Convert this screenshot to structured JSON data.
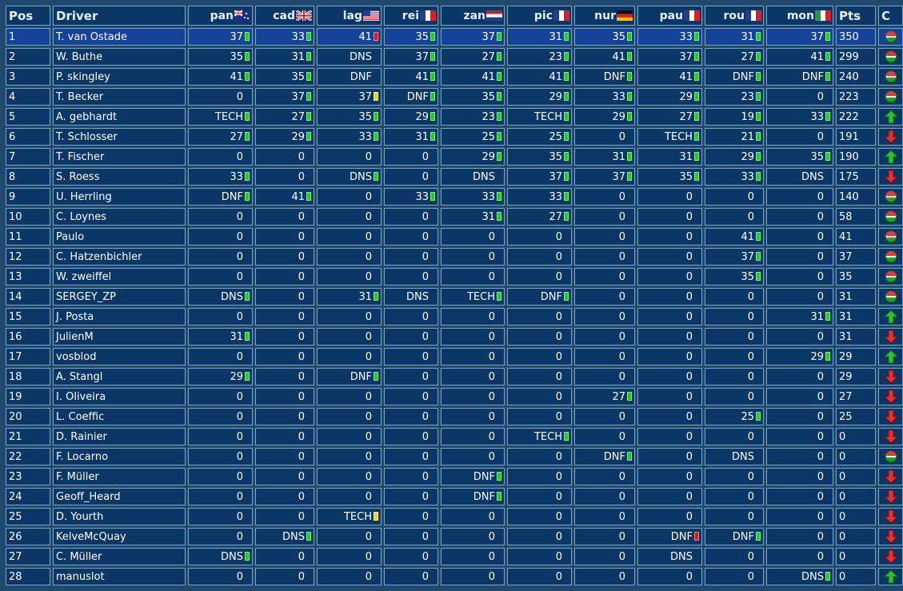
{
  "columns": {
    "pos": "Pos",
    "driver": "Driver",
    "pts": "Pts",
    "change": "C",
    "races": [
      {
        "code": "pan",
        "flag": "uk-au"
      },
      {
        "code": "cad",
        "flag": "uk"
      },
      {
        "code": "lag",
        "flag": "us"
      },
      {
        "code": "rei",
        "flag": "fr"
      },
      {
        "code": "zan",
        "flag": "nl"
      },
      {
        "code": "pic",
        "flag": "fr"
      },
      {
        "code": "nur",
        "flag": "de"
      },
      {
        "code": "pau",
        "flag": "fr"
      },
      {
        "code": "rou",
        "flag": "fr"
      },
      {
        "code": "mon",
        "flag": "it"
      }
    ]
  },
  "marker_colors": {
    "g": "#22cc22",
    "r": "#e01818",
    "y": "#e8d21a"
  },
  "rows": [
    {
      "pos": "1",
      "driver": "T. van Ostade",
      "results": [
        [
          "37",
          "g"
        ],
        [
          "33",
          "g"
        ],
        [
          "41",
          "r"
        ],
        [
          "35",
          "g"
        ],
        [
          "37",
          "g"
        ],
        [
          "31",
          "g"
        ],
        [
          "35",
          "g"
        ],
        [
          "33",
          "g"
        ],
        [
          "31",
          "g"
        ],
        [
          "37",
          "g"
        ]
      ],
      "pts": "350",
      "change": "same"
    },
    {
      "pos": "2",
      "driver": "W. Buthe",
      "results": [
        [
          "35",
          "g"
        ],
        [
          "31",
          "g"
        ],
        [
          "DNS",
          ""
        ],
        [
          "37",
          "g"
        ],
        [
          "27",
          "g"
        ],
        [
          "23",
          "g"
        ],
        [
          "41",
          "g"
        ],
        [
          "37",
          "g"
        ],
        [
          "27",
          "g"
        ],
        [
          "41",
          "g"
        ]
      ],
      "pts": "299",
      "change": "same"
    },
    {
      "pos": "3",
      "driver": "P. skingley",
      "results": [
        [
          "41",
          "g"
        ],
        [
          "35",
          "g"
        ],
        [
          "DNF",
          ""
        ],
        [
          "41",
          "g"
        ],
        [
          "41",
          "g"
        ],
        [
          "41",
          "g"
        ],
        [
          "DNF",
          "g"
        ],
        [
          "41",
          "g"
        ],
        [
          "DNF",
          "g"
        ],
        [
          "DNF",
          "g"
        ]
      ],
      "pts": "240",
      "change": "same"
    },
    {
      "pos": "4",
      "driver": "T. Becker",
      "results": [
        [
          "0",
          ""
        ],
        [
          "37",
          "g"
        ],
        [
          "37",
          "y"
        ],
        [
          "DNF",
          "g"
        ],
        [
          "35",
          "g"
        ],
        [
          "29",
          "g"
        ],
        [
          "33",
          "g"
        ],
        [
          "29",
          "g"
        ],
        [
          "23",
          "g"
        ],
        [
          "0",
          ""
        ]
      ],
      "pts": "223",
      "change": "same"
    },
    {
      "pos": "5",
      "driver": "A. gebhardt",
      "results": [
        [
          "TECH",
          "g"
        ],
        [
          "27",
          "g"
        ],
        [
          "35",
          "g"
        ],
        [
          "29",
          "g"
        ],
        [
          "23",
          "g"
        ],
        [
          "TECH",
          "g"
        ],
        [
          "29",
          "g"
        ],
        [
          "27",
          "g"
        ],
        [
          "19",
          "g"
        ],
        [
          "33",
          "g"
        ]
      ],
      "pts": "222",
      "change": "up"
    },
    {
      "pos": "6",
      "driver": "T. Schlosser",
      "results": [
        [
          "27",
          "g"
        ],
        [
          "29",
          "g"
        ],
        [
          "33",
          "g"
        ],
        [
          "31",
          "g"
        ],
        [
          "25",
          "g"
        ],
        [
          "25",
          "g"
        ],
        [
          "0",
          ""
        ],
        [
          "TECH",
          "g"
        ],
        [
          "21",
          "g"
        ],
        [
          "0",
          ""
        ]
      ],
      "pts": "191",
      "change": "down"
    },
    {
      "pos": "7",
      "driver": "T. Fischer",
      "results": [
        [
          "0",
          ""
        ],
        [
          "0",
          ""
        ],
        [
          "0",
          ""
        ],
        [
          "0",
          ""
        ],
        [
          "29",
          "g"
        ],
        [
          "35",
          "g"
        ],
        [
          "31",
          "g"
        ],
        [
          "31",
          "g"
        ],
        [
          "29",
          "g"
        ],
        [
          "35",
          "g"
        ]
      ],
      "pts": "190",
      "change": "up"
    },
    {
      "pos": "8",
      "driver": "S. Roess",
      "results": [
        [
          "33",
          "g"
        ],
        [
          "0",
          ""
        ],
        [
          "DNS",
          "g"
        ],
        [
          "0",
          ""
        ],
        [
          "DNS",
          ""
        ],
        [
          "37",
          "g"
        ],
        [
          "37",
          "g"
        ],
        [
          "35",
          "g"
        ],
        [
          "33",
          "g"
        ],
        [
          "DNS",
          ""
        ]
      ],
      "pts": "175",
      "change": "down"
    },
    {
      "pos": "9",
      "driver": "U. Herrling",
      "results": [
        [
          "DNF",
          "g"
        ],
        [
          "41",
          "g"
        ],
        [
          "0",
          ""
        ],
        [
          "33",
          "g"
        ],
        [
          "33",
          "g"
        ],
        [
          "33",
          "g"
        ],
        [
          "0",
          ""
        ],
        [
          "0",
          ""
        ],
        [
          "0",
          ""
        ],
        [
          "0",
          ""
        ]
      ],
      "pts": "140",
      "change": "same"
    },
    {
      "pos": "10",
      "driver": "C. Loynes",
      "results": [
        [
          "0",
          ""
        ],
        [
          "0",
          ""
        ],
        [
          "0",
          ""
        ],
        [
          "0",
          ""
        ],
        [
          "31",
          "g"
        ],
        [
          "27",
          "g"
        ],
        [
          "0",
          ""
        ],
        [
          "0",
          ""
        ],
        [
          "0",
          ""
        ],
        [
          "0",
          ""
        ]
      ],
      "pts": "58",
      "change": "same"
    },
    {
      "pos": "11",
      "driver": "Paulo",
      "results": [
        [
          "0",
          ""
        ],
        [
          "0",
          ""
        ],
        [
          "0",
          ""
        ],
        [
          "0",
          ""
        ],
        [
          "0",
          ""
        ],
        [
          "0",
          ""
        ],
        [
          "0",
          ""
        ],
        [
          "0",
          ""
        ],
        [
          "41",
          "g"
        ],
        [
          "0",
          ""
        ]
      ],
      "pts": "41",
      "change": "same"
    },
    {
      "pos": "12",
      "driver": "C. Hatzenbichler",
      "results": [
        [
          "0",
          ""
        ],
        [
          "0",
          ""
        ],
        [
          "0",
          ""
        ],
        [
          "0",
          ""
        ],
        [
          "0",
          ""
        ],
        [
          "0",
          ""
        ],
        [
          "0",
          ""
        ],
        [
          "0",
          ""
        ],
        [
          "37",
          "g"
        ],
        [
          "0",
          ""
        ]
      ],
      "pts": "37",
      "change": "same"
    },
    {
      "pos": "13",
      "driver": "W. zweiffel",
      "results": [
        [
          "0",
          ""
        ],
        [
          "0",
          ""
        ],
        [
          "0",
          ""
        ],
        [
          "0",
          ""
        ],
        [
          "0",
          ""
        ],
        [
          "0",
          ""
        ],
        [
          "0",
          ""
        ],
        [
          "0",
          ""
        ],
        [
          "35",
          "g"
        ],
        [
          "0",
          ""
        ]
      ],
      "pts": "35",
      "change": "same"
    },
    {
      "pos": "14",
      "driver": "SERGEY_ZP",
      "results": [
        [
          "DNS",
          "g"
        ],
        [
          "0",
          ""
        ],
        [
          "31",
          "g"
        ],
        [
          "DNS",
          ""
        ],
        [
          "TECH",
          "g"
        ],
        [
          "DNF",
          "g"
        ],
        [
          "0",
          ""
        ],
        [
          "0",
          ""
        ],
        [
          "0",
          ""
        ],
        [
          "0",
          ""
        ]
      ],
      "pts": "31",
      "change": "same"
    },
    {
      "pos": "15",
      "driver": "J. Posta",
      "results": [
        [
          "0",
          ""
        ],
        [
          "0",
          ""
        ],
        [
          "0",
          ""
        ],
        [
          "0",
          ""
        ],
        [
          "0",
          ""
        ],
        [
          "0",
          ""
        ],
        [
          "0",
          ""
        ],
        [
          "0",
          ""
        ],
        [
          "0",
          ""
        ],
        [
          "31",
          "g"
        ]
      ],
      "pts": "31",
      "change": "up"
    },
    {
      "pos": "16",
      "driver": "JulienM",
      "results": [
        [
          "31",
          "g"
        ],
        [
          "0",
          ""
        ],
        [
          "0",
          ""
        ],
        [
          "0",
          ""
        ],
        [
          "0",
          ""
        ],
        [
          "0",
          ""
        ],
        [
          "0",
          ""
        ],
        [
          "0",
          ""
        ],
        [
          "0",
          ""
        ],
        [
          "0",
          ""
        ]
      ],
      "pts": "31",
      "change": "down"
    },
    {
      "pos": "17",
      "driver": "vosblod",
      "results": [
        [
          "0",
          ""
        ],
        [
          "0",
          ""
        ],
        [
          "0",
          ""
        ],
        [
          "0",
          ""
        ],
        [
          "0",
          ""
        ],
        [
          "0",
          ""
        ],
        [
          "0",
          ""
        ],
        [
          "0",
          ""
        ],
        [
          "0",
          ""
        ],
        [
          "29",
          "g"
        ]
      ],
      "pts": "29",
      "change": "up"
    },
    {
      "pos": "18",
      "driver": "A. Stangl",
      "results": [
        [
          "29",
          "g"
        ],
        [
          "0",
          ""
        ],
        [
          "DNF",
          "g"
        ],
        [
          "0",
          ""
        ],
        [
          "0",
          ""
        ],
        [
          "0",
          ""
        ],
        [
          "0",
          ""
        ],
        [
          "0",
          ""
        ],
        [
          "0",
          ""
        ],
        [
          "0",
          ""
        ]
      ],
      "pts": "29",
      "change": "down"
    },
    {
      "pos": "19",
      "driver": "I. Oliveira",
      "results": [
        [
          "0",
          ""
        ],
        [
          "0",
          ""
        ],
        [
          "0",
          ""
        ],
        [
          "0",
          ""
        ],
        [
          "0",
          ""
        ],
        [
          "0",
          ""
        ],
        [
          "27",
          "g"
        ],
        [
          "0",
          ""
        ],
        [
          "0",
          ""
        ],
        [
          "0",
          ""
        ]
      ],
      "pts": "27",
      "change": "down"
    },
    {
      "pos": "20",
      "driver": "L. Coeffic",
      "results": [
        [
          "0",
          ""
        ],
        [
          "0",
          ""
        ],
        [
          "0",
          ""
        ],
        [
          "0",
          ""
        ],
        [
          "0",
          ""
        ],
        [
          "0",
          ""
        ],
        [
          "0",
          ""
        ],
        [
          "0",
          ""
        ],
        [
          "25",
          "g"
        ],
        [
          "0",
          ""
        ]
      ],
      "pts": "25",
      "change": "down"
    },
    {
      "pos": "21",
      "driver": "D. Rainier",
      "results": [
        [
          "0",
          ""
        ],
        [
          "0",
          ""
        ],
        [
          "0",
          ""
        ],
        [
          "0",
          ""
        ],
        [
          "0",
          ""
        ],
        [
          "TECH",
          "g"
        ],
        [
          "0",
          ""
        ],
        [
          "0",
          ""
        ],
        [
          "0",
          ""
        ],
        [
          "0",
          ""
        ]
      ],
      "pts": "0",
      "change": "down"
    },
    {
      "pos": "22",
      "driver": "F. Locarno",
      "results": [
        [
          "0",
          ""
        ],
        [
          "0",
          ""
        ],
        [
          "0",
          ""
        ],
        [
          "0",
          ""
        ],
        [
          "0",
          ""
        ],
        [
          "0",
          ""
        ],
        [
          "DNF",
          "g"
        ],
        [
          "0",
          ""
        ],
        [
          "DNS",
          ""
        ],
        [
          "0",
          ""
        ]
      ],
      "pts": "0",
      "change": "same"
    },
    {
      "pos": "23",
      "driver": "F. Müller",
      "results": [
        [
          "0",
          ""
        ],
        [
          "0",
          ""
        ],
        [
          "0",
          ""
        ],
        [
          "0",
          ""
        ],
        [
          "DNF",
          "g"
        ],
        [
          "0",
          ""
        ],
        [
          "0",
          ""
        ],
        [
          "0",
          ""
        ],
        [
          "0",
          ""
        ],
        [
          "0",
          ""
        ]
      ],
      "pts": "0",
      "change": "down"
    },
    {
      "pos": "24",
      "driver": "Geoff_Heard",
      "results": [
        [
          "0",
          ""
        ],
        [
          "0",
          ""
        ],
        [
          "0",
          ""
        ],
        [
          "0",
          ""
        ],
        [
          "DNF",
          "g"
        ],
        [
          "0",
          ""
        ],
        [
          "0",
          ""
        ],
        [
          "0",
          ""
        ],
        [
          "0",
          ""
        ],
        [
          "0",
          ""
        ]
      ],
      "pts": "0",
      "change": "down"
    },
    {
      "pos": "25",
      "driver": "D. Yourth",
      "results": [
        [
          "0",
          ""
        ],
        [
          "0",
          ""
        ],
        [
          "TECH",
          "y"
        ],
        [
          "0",
          ""
        ],
        [
          "0",
          ""
        ],
        [
          "0",
          ""
        ],
        [
          "0",
          ""
        ],
        [
          "0",
          ""
        ],
        [
          "0",
          ""
        ],
        [
          "0",
          ""
        ]
      ],
      "pts": "0",
      "change": "down"
    },
    {
      "pos": "26",
      "driver": "KelveMcQuay",
      "results": [
        [
          "0",
          ""
        ],
        [
          "DNS",
          "g"
        ],
        [
          "0",
          ""
        ],
        [
          "0",
          ""
        ],
        [
          "0",
          ""
        ],
        [
          "0",
          ""
        ],
        [
          "0",
          ""
        ],
        [
          "DNF",
          "r"
        ],
        [
          "DNF",
          "g"
        ],
        [
          "0",
          ""
        ]
      ],
      "pts": "0",
      "change": "down"
    },
    {
      "pos": "27",
      "driver": "C. Müller",
      "results": [
        [
          "DNS",
          "g"
        ],
        [
          "0",
          ""
        ],
        [
          "0",
          ""
        ],
        [
          "0",
          ""
        ],
        [
          "0",
          ""
        ],
        [
          "0",
          ""
        ],
        [
          "0",
          ""
        ],
        [
          "DNS",
          ""
        ],
        [
          "0",
          ""
        ],
        [
          "0",
          ""
        ]
      ],
      "pts": "0",
      "change": "down"
    },
    {
      "pos": "28",
      "driver": "manuslot",
      "results": [
        [
          "0",
          ""
        ],
        [
          "0",
          ""
        ],
        [
          "0",
          ""
        ],
        [
          "0",
          ""
        ],
        [
          "0",
          ""
        ],
        [
          "0",
          ""
        ],
        [
          "0",
          ""
        ],
        [
          "0",
          ""
        ],
        [
          "0",
          ""
        ],
        [
          "DNS",
          "g"
        ]
      ],
      "pts": "0",
      "change": "up"
    }
  ]
}
